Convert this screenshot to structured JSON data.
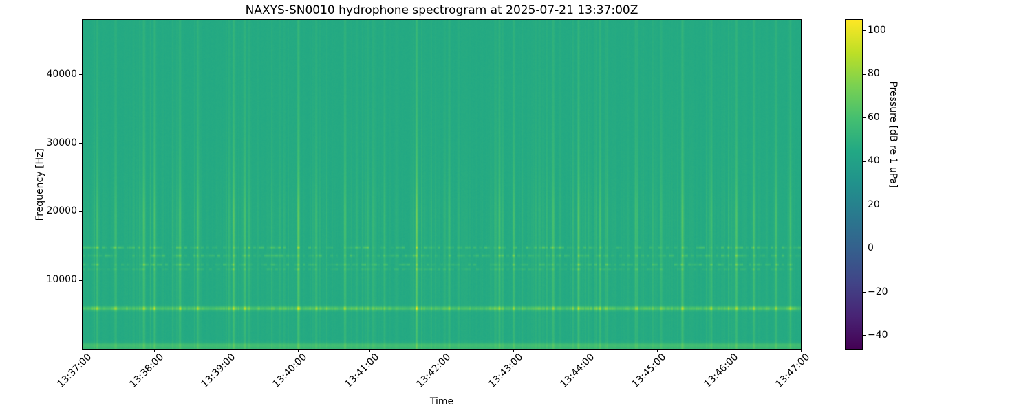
{
  "figure": {
    "background": "#ffffff"
  },
  "chart_data": {
    "type": "heatmap",
    "subtype": "spectrogram",
    "title": "NAXYS-SN0010 hydrophone spectrogram at 2025-07-21 13:37:00Z",
    "xlabel": "Time",
    "ylabel": "Frequency [Hz]",
    "x_ticks": [
      "13:37:00",
      "13:38:00",
      "13:39:00",
      "13:40:00",
      "13:41:00",
      "13:42:00",
      "13:43:00",
      "13:44:00",
      "13:45:00",
      "13:46:00",
      "13:47:00"
    ],
    "x_range_note": "11 evenly spaced one-minute ticks spanning the full plot width",
    "y_ticks": [
      {
        "v": 10000,
        "label": "10000"
      },
      {
        "v": 20000,
        "label": "20000"
      },
      {
        "v": 30000,
        "label": "30000"
      },
      {
        "v": 40000,
        "label": "40000"
      }
    ],
    "freq_min_hz": 0,
    "freq_max_hz": 48000,
    "colorbar": {
      "label": "Pressure [dB re 1 uPa]",
      "ticks": [
        {
          "v": 100,
          "label": "100"
        },
        {
          "v": 80,
          "label": "80"
        },
        {
          "v": 60,
          "label": "60"
        },
        {
          "v": 40,
          "label": "40"
        },
        {
          "v": 20,
          "label": "20"
        },
        {
          "v": 0,
          "label": "0"
        },
        {
          "v": -20,
          "label": "−20"
        },
        {
          "v": -40,
          "label": "−40"
        }
      ],
      "vmin": -46,
      "vmax": 105
    },
    "colormap": "viridis",
    "colormap_anchors": [
      {
        "t": 0.0,
        "color": "#440154"
      },
      {
        "t": 0.1,
        "color": "#482475"
      },
      {
        "t": 0.2,
        "color": "#414487"
      },
      {
        "t": 0.3,
        "color": "#355f8d"
      },
      {
        "t": 0.4,
        "color": "#2a788e"
      },
      {
        "t": 0.5,
        "color": "#21918c"
      },
      {
        "t": 0.6,
        "color": "#22a884"
      },
      {
        "t": 0.7,
        "color": "#44bf70"
      },
      {
        "t": 0.8,
        "color": "#7ad151"
      },
      {
        "t": 0.9,
        "color": "#bddf26"
      },
      {
        "t": 1.0,
        "color": "#fde725"
      }
    ],
    "background_level_db": 45.5,
    "bands": [
      {
        "name": "low-frequency-ambient-band",
        "center_hz": 250,
        "sigma_hz": 500,
        "gain_db": 10
      },
      {
        "name": "low-frequency-bright-strip",
        "center_hz": 600,
        "sigma_hz": 220,
        "gain_db": 6
      },
      {
        "name": "tonal-band-6khz",
        "center_hz": 5900,
        "sigma_hz": 290,
        "gain_db": 13
      }
    ],
    "tonal_dash": {
      "center_hz": 5900,
      "sigma_hz": 290,
      "stripe_coupling": 1.1,
      "noise_gain": 11
    },
    "speckle_rows": [
      {
        "center_hz": 14800,
        "sigma_hz": 170,
        "strength": 16
      },
      {
        "center_hz": 13600,
        "sigma_hz": 160,
        "strength": 14
      },
      {
        "center_hz": 12300,
        "sigma_hz": 150,
        "strength": 13
      },
      {
        "center_hz": 11600,
        "sigma_hz": 120,
        "strength": 7
      }
    ],
    "stripe_gain_profile": {
      "base": 0.4,
      "mid_center_hz": 15000,
      "mid_sigma_hz": 14000,
      "mid_amp": 0.6,
      "hi_center_hz": 19500,
      "hi_sigma_hz": 3500,
      "hi_amp": 0.22
    },
    "events": [
      {
        "t": 0.02,
        "intensity": 0.5
      },
      {
        "t": 0.045,
        "intensity": 0.35
      },
      {
        "t": 0.085,
        "intensity": 0.7
      },
      {
        "t": 0.1,
        "intensity": 0.5
      },
      {
        "t": 0.135,
        "intensity": 0.65
      },
      {
        "t": 0.16,
        "intensity": 0.4
      },
      {
        "t": 0.21,
        "intensity": 0.7
      },
      {
        "t": 0.225,
        "intensity": 0.5
      },
      {
        "t": 0.3,
        "intensity": 0.6
      },
      {
        "t": 0.325,
        "intensity": 0.45
      },
      {
        "t": 0.365,
        "intensity": 0.55
      },
      {
        "t": 0.42,
        "intensity": 0.4
      },
      {
        "t": 0.4646,
        "intensity": 1.0
      },
      {
        "t": 0.51,
        "intensity": 0.45
      },
      {
        "t": 0.58,
        "intensity": 0.6
      },
      {
        "t": 0.6,
        "intensity": 0.5
      },
      {
        "t": 0.655,
        "intensity": 0.4
      },
      {
        "t": 0.69,
        "intensity": 0.65
      },
      {
        "t": 0.72,
        "intensity": 0.5
      },
      {
        "t": 0.77,
        "intensity": 0.55
      },
      {
        "t": 0.805,
        "intensity": 0.4
      },
      {
        "t": 0.835,
        "intensity": 0.6
      },
      {
        "t": 0.875,
        "intensity": 0.5
      },
      {
        "t": 0.91,
        "intensity": 0.65
      },
      {
        "t": 0.935,
        "intensity": 0.45
      },
      {
        "t": 0.965,
        "intensity": 0.5
      },
      {
        "t": 0.985,
        "intensity": 0.4
      }
    ],
    "seed": 1337
  }
}
